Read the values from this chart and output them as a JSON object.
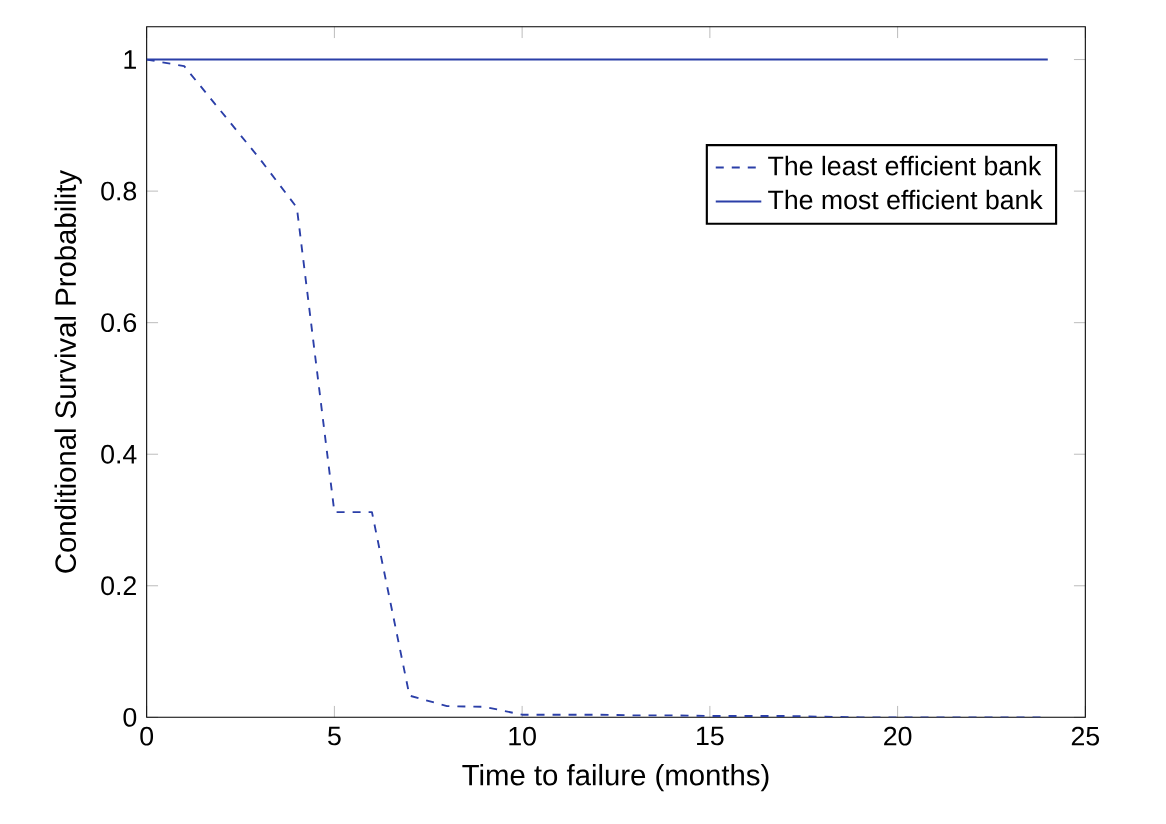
{
  "chart_data": {
    "type": "line",
    "xlabel": "Time to failure (months)",
    "ylabel": "Conditional Survival Probability",
    "xlim": [
      0,
      25
    ],
    "ylim": [
      0,
      1.05
    ],
    "xticks": [
      0,
      5,
      10,
      15,
      20,
      25
    ],
    "yticks": [
      0,
      0.2,
      0.4,
      0.6,
      0.8,
      1
    ],
    "legend": "top right",
    "grid": false,
    "marker": "none",
    "series": [
      {
        "name": "The least efficient bank",
        "color": "#2b3fa8",
        "line_style": "dashed",
        "x": [
          0,
          1,
          2,
          3,
          4,
          5,
          6,
          7,
          8,
          9,
          10,
          11,
          12,
          13,
          14,
          15,
          16,
          17,
          18,
          19,
          20,
          21,
          22,
          23,
          24
        ],
        "values": [
          1,
          0.99,
          0.92,
          0.85,
          0.775,
          0.312,
          0.312,
          0.033,
          0.017,
          0.016,
          0.004,
          0.004,
          0.004,
          0.003,
          0.003,
          0.002,
          0.002,
          0.002,
          0.001,
          0,
          0,
          0,
          0,
          0,
          0
        ]
      },
      {
        "name": "The most efficient bank",
        "color": "#2b3fa8",
        "line_style": "solid",
        "x": [
          0,
          24
        ],
        "values": [
          1,
          1
        ]
      }
    ]
  }
}
